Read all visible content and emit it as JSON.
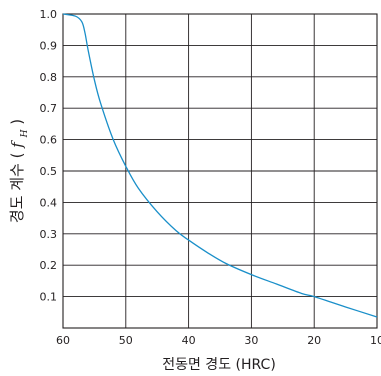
{
  "chart_data": {
    "type": "line",
    "xlabel": "전동면 경도 (HRC)",
    "ylabel": {
      "prefix": "경도 계수 (",
      "symbol": "f",
      "subscript": "H",
      "suffix": ")"
    },
    "xlim": [
      60,
      10
    ],
    "ylim": [
      0,
      1.0
    ],
    "x_reversed": true,
    "x_ticks": [
      60,
      50,
      40,
      30,
      20,
      10
    ],
    "y_ticks": [
      0.1,
      0.2,
      0.3,
      0.4,
      0.5,
      0.6,
      0.7,
      0.8,
      0.9,
      1.0
    ],
    "x_tick_labels": [
      "60",
      "50",
      "40",
      "30",
      "20",
      "10"
    ],
    "y_tick_labels": [
      "0.1",
      "0.2",
      "0.3",
      "0.4",
      "0.5",
      "0.6",
      "0.7",
      "0.8",
      "0.9",
      "1.0"
    ],
    "grid": true,
    "series": [
      {
        "color": "#1a8fc9",
        "x": [
          60,
          58,
          57,
          56.5,
          56,
          55,
          54,
          52,
          50,
          48,
          45,
          42,
          40,
          37,
          34,
          30,
          26,
          22,
          20,
          15,
          10
        ],
        "y": [
          1.0,
          0.993,
          0.975,
          0.94,
          0.885,
          0.79,
          0.715,
          0.6,
          0.515,
          0.445,
          0.37,
          0.31,
          0.28,
          0.24,
          0.205,
          0.17,
          0.14,
          0.11,
          0.1,
          0.067,
          0.035
        ]
      }
    ]
  }
}
